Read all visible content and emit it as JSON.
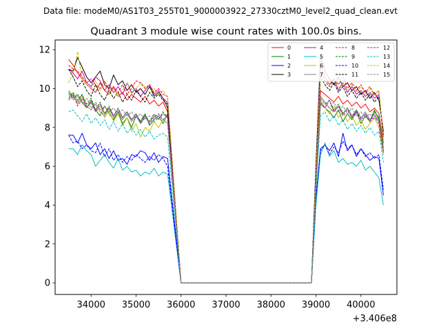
{
  "chart_data": {
    "type": "line",
    "suptitle": "Data file: modeM0/AS1T03_255T01_9000003922_27330cztM0_level2_quad_clean.evt",
    "title": "Quadrant 3 module wise count rates with 100.0s bins.",
    "xlabel": "",
    "ylabel": "",
    "x_offset_label": "+3.406e8",
    "xlim": [
      33200,
      40800
    ],
    "ylim": [
      -0.6,
      12.5
    ],
    "x_ticks": [
      34000,
      35000,
      36000,
      37000,
      38000,
      39000,
      40000
    ],
    "x_tick_labels": [
      "34000",
      "35000",
      "36000",
      "37000",
      "38000",
      "39000",
      "40000"
    ],
    "y_ticks": [
      0,
      2,
      4,
      6,
      8,
      10,
      12
    ],
    "y_tick_labels": [
      "0",
      "2",
      "4",
      "6",
      "8",
      "10",
      "12"
    ],
    "legend_position": "top-right",
    "segment1": {
      "start": 33500,
      "step": 100,
      "count": 23
    },
    "gap": [
      36000,
      38900
    ],
    "segment2": {
      "start": 38900,
      "step": 100,
      "count": 17
    },
    "series": [
      {
        "name": "0",
        "color": "#ff0000",
        "dash": "solid",
        "seg1": [
          11.5,
          11.2,
          10.8,
          10.5,
          10.2,
          10.0,
          9.8,
          10.3,
          9.9,
          9.7,
          10.1,
          9.6,
          9.8,
          9.4,
          9.7,
          9.5,
          9.3,
          9.6,
          9.2,
          9.4,
          9.1,
          9.3,
          8.8
        ],
        "seg2": [
          0.0,
          5.2,
          9.9,
          9.7,
          9.5,
          9.3,
          9.6,
          9.2,
          9.4,
          9.1,
          9.3,
          9.0,
          9.2,
          8.8,
          9.0,
          8.7,
          7.2
        ]
      },
      {
        "name": "1",
        "color": "#008000",
        "dash": "solid",
        "seg1": [
          9.8,
          9.5,
          9.7,
          9.3,
          9.0,
          9.4,
          8.9,
          8.6,
          9.1,
          8.7,
          8.4,
          8.8,
          8.2,
          8.5,
          8.0,
          8.6,
          8.3,
          8.7,
          8.1,
          8.4,
          8.6,
          8.2,
          8.7
        ],
        "seg2": [
          0.0,
          4.8,
          9.2,
          9.0,
          8.8,
          8.5,
          8.9,
          8.3,
          8.7,
          8.4,
          8.8,
          8.2,
          8.6,
          8.3,
          8.9,
          8.4,
          6.8
        ]
      },
      {
        "name": "2",
        "color": "#0000ff",
        "dash": "solid",
        "seg1": [
          7.6,
          7.6,
          7.2,
          7.7,
          7.1,
          6.9,
          7.2,
          6.6,
          6.9,
          6.4,
          6.8,
          6.3,
          6.4,
          6.1,
          6.6,
          6.5,
          6.8,
          6.7,
          6.3,
          6.7,
          6.2,
          6.5,
          6.4
        ],
        "seg2": [
          0.0,
          4.3,
          6.9,
          7.1,
          6.8,
          7.2,
          6.5,
          7.7,
          6.8,
          7.1,
          6.5,
          6.9,
          6.6,
          6.3,
          6.5,
          6.4,
          4.5
        ]
      },
      {
        "name": "3",
        "color": "#000000",
        "dash": "solid",
        "seg1": [
          11.0,
          10.9,
          11.6,
          11.1,
          10.6,
          10.3,
          10.6,
          10.9,
          10.2,
          10.0,
          10.7,
          10.2,
          10.4,
          9.9,
          10.2,
          9.8,
          10.0,
          9.7,
          10.1,
          9.6,
          9.8,
          9.5,
          9.0
        ],
        "seg2": [
          0.0,
          6.1,
          11.7,
          10.9,
          10.5,
          10.2,
          10.6,
          10.1,
          10.3,
          9.9,
          10.1,
          9.7,
          9.9,
          9.5,
          9.8,
          9.4,
          7.8
        ]
      },
      {
        "name": "4",
        "color": "#bf00bf",
        "dash": "solid",
        "seg1": [
          11.0,
          10.8,
          10.5,
          10.9,
          10.3,
          10.1,
          10.6,
          10.4,
          9.9,
          10.2,
          9.8,
          10.1,
          9.7,
          10.3,
          9.8,
          10.0,
          9.6,
          9.9,
          10.2,
          9.7,
          9.9,
          9.5,
          9.3
        ],
        "seg2": [
          0.0,
          5.9,
          11.2,
          10.6,
          10.2,
          10.5,
          9.9,
          10.3,
          9.8,
          10.1,
          9.7,
          9.9,
          9.6,
          9.8,
          9.5,
          9.7,
          7.6
        ]
      },
      {
        "name": "5",
        "color": "#00bfbf",
        "dash": "solid",
        "seg1": [
          6.9,
          6.9,
          6.6,
          7.1,
          6.8,
          6.6,
          6.0,
          6.3,
          6.6,
          6.2,
          5.9,
          6.4,
          5.8,
          6.0,
          5.7,
          5.8,
          5.5,
          5.7,
          5.6,
          5.9,
          5.5,
          5.7,
          5.6
        ],
        "seg2": [
          0.0,
          4.0,
          6.6,
          7.2,
          6.5,
          6.8,
          6.2,
          6.4,
          6.1,
          6.2,
          6.0,
          6.3,
          5.8,
          6.0,
          5.7,
          5.4,
          4.0
        ]
      },
      {
        "name": "6",
        "color": "#bfbf00",
        "dash": "solid",
        "seg1": [
          9.5,
          9.8,
          9.2,
          9.6,
          9.0,
          9.3,
          8.8,
          9.1,
          8.5,
          8.9,
          8.3,
          8.7,
          8.1,
          8.5,
          7.8,
          8.2,
          7.5,
          8.0,
          7.8,
          8.3,
          8.0,
          8.4,
          8.2
        ],
        "seg2": [
          0.0,
          4.9,
          9.4,
          9.0,
          8.7,
          9.1,
          8.5,
          8.8,
          8.3,
          8.6,
          8.1,
          8.4,
          7.9,
          8.2,
          8.5,
          8.0,
          6.6
        ]
      },
      {
        "name": "7",
        "color": "#808080",
        "dash": "solid",
        "seg1": [
          9.9,
          9.6,
          9.3,
          9.7,
          9.1,
          8.9,
          9.2,
          8.8,
          8.6,
          9.0,
          8.5,
          8.8,
          8.4,
          8.7,
          8.3,
          8.6,
          8.2,
          8.5,
          8.3,
          8.6,
          8.4,
          8.7,
          8.5
        ],
        "seg2": [
          0.0,
          5.1,
          9.6,
          9.3,
          9.0,
          8.8,
          9.1,
          8.7,
          9.0,
          8.6,
          8.9,
          8.5,
          8.8,
          8.4,
          8.7,
          8.3,
          6.9
        ]
      },
      {
        "name": "8",
        "color": "#ff0000",
        "dash": "dashed",
        "seg1": [
          11.2,
          11.0,
          10.9,
          10.6,
          10.3,
          10.5,
          10.2,
          10.0,
          10.4,
          9.9,
          10.1,
          9.8,
          10.2,
          9.7,
          10.0,
          10.4,
          10.3,
          10.0,
          10.2,
          9.8,
          10.0,
          9.7,
          9.6
        ],
        "seg2": [
          0.0,
          5.6,
          10.8,
          10.4,
          10.1,
          10.5,
          10.2,
          10.6,
          10.0,
          10.3,
          9.9,
          10.2,
          9.8,
          10.1,
          9.7,
          9.9,
          7.4
        ]
      },
      {
        "name": "9",
        "color": "#008000",
        "dash": "dashed",
        "seg1": [
          9.5,
          9.8,
          9.4,
          9.7,
          9.2,
          9.5,
          8.9,
          9.3,
          8.7,
          9.1,
          8.6,
          9.0,
          8.5,
          8.8,
          8.4,
          8.7,
          8.2,
          8.6,
          8.3,
          8.7,
          8.4,
          8.8,
          8.5
        ],
        "seg2": [
          0.0,
          5.0,
          9.5,
          9.2,
          9.4,
          8.9,
          9.2,
          8.7,
          9.0,
          8.5,
          8.9,
          8.4,
          8.7,
          8.3,
          8.8,
          8.5,
          7.0
        ]
      },
      {
        "name": "10",
        "color": "#0000ff",
        "dash": "dashed",
        "seg1": [
          7.6,
          7.2,
          7.3,
          6.9,
          7.1,
          6.8,
          6.7,
          7.2,
          6.5,
          6.9,
          6.3,
          6.6,
          6.2,
          6.5,
          6.3,
          6.6,
          6.4,
          6.2,
          6.5,
          6.3,
          6.6,
          6.4,
          6.0
        ],
        "seg2": [
          0.0,
          4.4,
          6.8,
          7.1,
          6.6,
          7.0,
          6.7,
          7.3,
          6.9,
          7.1,
          6.6,
          6.9,
          6.5,
          6.7,
          6.4,
          6.6,
          4.8
        ]
      },
      {
        "name": "11",
        "color": "#000000",
        "dash": "dashed",
        "seg1": [
          11.0,
          10.6,
          10.1,
          10.4,
          9.9,
          9.6,
          10.2,
          9.7,
          9.4,
          9.9,
          9.5,
          9.8,
          9.3,
          9.7,
          9.4,
          9.9,
          9.6,
          9.3,
          9.8,
          9.5,
          9.7,
          9.4,
          9.2
        ],
        "seg2": [
          0.0,
          5.8,
          10.6,
          10.2,
          9.9,
          10.3,
          9.8,
          10.1,
          9.6,
          9.9,
          9.5,
          9.8,
          9.4,
          9.7,
          9.3,
          9.6,
          7.5
        ]
      },
      {
        "name": "12",
        "color": "#bf00bf",
        "dash": "dashed",
        "seg1": [
          9.4,
          9.7,
          9.1,
          9.5,
          9.0,
          9.3,
          8.8,
          9.2,
          8.7,
          9.0,
          8.6,
          8.9,
          8.5,
          8.8,
          8.4,
          8.7,
          8.3,
          8.6,
          8.2,
          8.5,
          8.7,
          8.4,
          8.6
        ],
        "seg2": [
          0.0,
          5.0,
          9.3,
          9.0,
          9.4,
          8.8,
          9.1,
          8.6,
          8.9,
          8.5,
          8.8,
          8.4,
          8.7,
          8.3,
          8.6,
          8.2,
          6.7
        ]
      },
      {
        "name": "13",
        "color": "#00bfbf",
        "dash": "dashed",
        "seg1": [
          8.8,
          8.9,
          8.6,
          8.3,
          8.7,
          8.2,
          8.5,
          8.1,
          8.4,
          7.9,
          8.3,
          7.8,
          8.2,
          7.7,
          8.0,
          7.6,
          7.9,
          7.5,
          7.8,
          7.4,
          7.6,
          7.7,
          7.5
        ],
        "seg2": [
          0.0,
          4.7,
          8.6,
          8.8,
          8.3,
          8.6,
          8.1,
          8.4,
          7.9,
          8.2,
          7.8,
          8.1,
          7.7,
          8.0,
          7.6,
          7.8,
          6.2
        ]
      },
      {
        "name": "14",
        "color": "#bfbf00",
        "dash": "dashed",
        "seg1": [
          10.3,
          10.8,
          11.9,
          10.5,
          10.2,
          10.0,
          10.4,
          9.9,
          10.2,
          9.7,
          10.0,
          9.6,
          9.9,
          10.3,
          9.7,
          10.0,
          10.3,
          10.1,
          9.8,
          10.0,
          9.7,
          9.9,
          9.5
        ],
        "seg2": [
          0.0,
          5.7,
          10.9,
          10.5,
          10.2,
          10.6,
          10.0,
          10.3,
          9.9,
          10.2,
          9.8,
          10.1,
          9.7,
          10.0,
          9.6,
          9.9,
          7.3
        ]
      },
      {
        "name": "15",
        "color": "#808080",
        "dash": "dashed",
        "seg1": [
          9.7,
          9.4,
          9.6,
          9.2,
          9.5,
          9.0,
          9.3,
          8.9,
          9.1,
          8.8,
          9.0,
          8.7,
          8.9,
          8.6,
          8.8,
          8.5,
          8.7,
          8.4,
          8.6,
          8.3,
          8.5,
          8.4,
          8.2
        ],
        "seg2": [
          0.0,
          5.0,
          9.5,
          9.2,
          9.0,
          9.3,
          8.8,
          9.1,
          8.7,
          9.0,
          8.6,
          8.8,
          8.5,
          8.7,
          8.4,
          8.6,
          6.8
        ]
      }
    ]
  }
}
